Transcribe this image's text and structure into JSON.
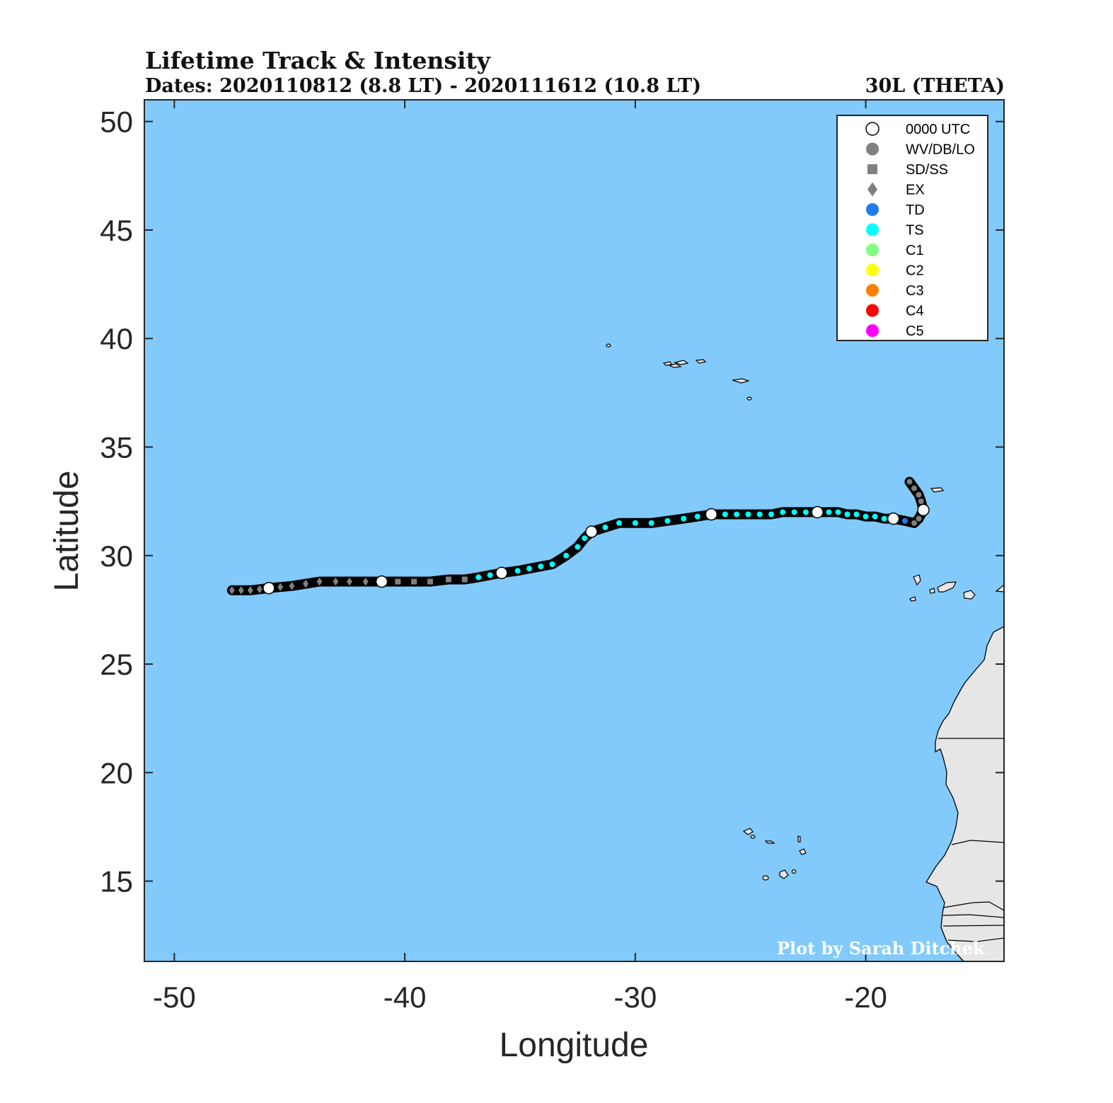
{
  "header": {
    "title": "Lifetime Track & Intensity",
    "subtitle": "Dates: 2020110812 (8.8 LT) - 2020111612 (10.8 LT)",
    "storm_id": "30L (THETA)"
  },
  "credit": "Plot by Sarah Ditchek",
  "colors": {
    "ocean": "#82cafc",
    "land": "#e6e6e6",
    "track": "#000000",
    "TD": "#1f7ce8",
    "TS": "#00ffff",
    "C1": "#80ff80",
    "C2": "#ffff00",
    "C3": "#ff8000",
    "C4": "#ff0000",
    "C5": "#ff00ff",
    "non_tropical": "#808080",
    "utc_marker": "#ffffff"
  },
  "legend": [
    {
      "label": "0000 UTC",
      "shape": "circle",
      "color": "#ffffff"
    },
    {
      "label": "WV/DB/LO",
      "shape": "circle",
      "color": "#808080"
    },
    {
      "label": "SD/SS",
      "shape": "square",
      "color": "#808080"
    },
    {
      "label": "EX",
      "shape": "diamond",
      "color": "#808080"
    },
    {
      "label": "TD",
      "shape": "circle",
      "color": "#1f7ce8"
    },
    {
      "label": "TS",
      "shape": "circle",
      "color": "#00ffff"
    },
    {
      "label": "C1",
      "shape": "circle",
      "color": "#80ff80"
    },
    {
      "label": "C2",
      "shape": "circle",
      "color": "#ffff00"
    },
    {
      "label": "C3",
      "shape": "circle",
      "color": "#ff8000"
    },
    {
      "label": "C4",
      "shape": "circle",
      "color": "#ff0000"
    },
    {
      "label": "C5",
      "shape": "circle",
      "color": "#ff00ff"
    }
  ],
  "chart_data": {
    "type": "scatter",
    "xlabel": "Longitude",
    "ylabel": "Latitude",
    "xlim": [
      -51.3,
      -14.0
    ],
    "ylim": [
      11.3,
      51.0
    ],
    "xticks": [
      -50,
      -40,
      -30,
      -20
    ],
    "yticks": [
      15,
      20,
      25,
      30,
      35,
      40,
      45,
      50
    ],
    "legend_position": "top-right",
    "track": [
      {
        "lon": -18.1,
        "lat": 33.4,
        "cat": "LO"
      },
      {
        "lon": -17.9,
        "lat": 33.1,
        "cat": "LO"
      },
      {
        "lon": -17.7,
        "lat": 32.8,
        "cat": "LO"
      },
      {
        "lon": -17.6,
        "lat": 32.5,
        "cat": "LO"
      },
      {
        "lon": -17.5,
        "lat": 32.1,
        "cat": "LO",
        "utc00": true
      },
      {
        "lon": -17.7,
        "lat": 31.7,
        "cat": "LO"
      },
      {
        "lon": -17.9,
        "lat": 31.5,
        "cat": "LO"
      },
      {
        "lon": -18.3,
        "lat": 31.6,
        "cat": "TD"
      },
      {
        "lon": -18.8,
        "lat": 31.7,
        "cat": "TS",
        "utc00": true
      },
      {
        "lon": -19.2,
        "lat": 31.7,
        "cat": "TS"
      },
      {
        "lon": -19.6,
        "lat": 31.8,
        "cat": "TS"
      },
      {
        "lon": -20.0,
        "lat": 31.8,
        "cat": "TS"
      },
      {
        "lon": -20.4,
        "lat": 31.9,
        "cat": "TS"
      },
      {
        "lon": -20.8,
        "lat": 31.9,
        "cat": "TS"
      },
      {
        "lon": -21.2,
        "lat": 32.0,
        "cat": "TS"
      },
      {
        "lon": -21.6,
        "lat": 32.0,
        "cat": "TS"
      },
      {
        "lon": -22.1,
        "lat": 32.0,
        "cat": "TS",
        "utc00": true
      },
      {
        "lon": -22.6,
        "lat": 32.0,
        "cat": "TS"
      },
      {
        "lon": -23.1,
        "lat": 32.0,
        "cat": "TS"
      },
      {
        "lon": -23.6,
        "lat": 32.0,
        "cat": "TS"
      },
      {
        "lon": -24.1,
        "lat": 31.9,
        "cat": "TS"
      },
      {
        "lon": -24.6,
        "lat": 31.9,
        "cat": "TS"
      },
      {
        "lon": -25.1,
        "lat": 31.9,
        "cat": "TS"
      },
      {
        "lon": -25.6,
        "lat": 31.9,
        "cat": "TS"
      },
      {
        "lon": -26.1,
        "lat": 31.9,
        "cat": "TS"
      },
      {
        "lon": -26.7,
        "lat": 31.9,
        "cat": "TS",
        "utc00": true
      },
      {
        "lon": -27.3,
        "lat": 31.8,
        "cat": "TS"
      },
      {
        "lon": -27.9,
        "lat": 31.7,
        "cat": "TS"
      },
      {
        "lon": -28.6,
        "lat": 31.6,
        "cat": "TS"
      },
      {
        "lon": -29.3,
        "lat": 31.5,
        "cat": "TS"
      },
      {
        "lon": -30.0,
        "lat": 31.5,
        "cat": "TS"
      },
      {
        "lon": -30.7,
        "lat": 31.5,
        "cat": "TS"
      },
      {
        "lon": -31.3,
        "lat": 31.3,
        "cat": "TS"
      },
      {
        "lon": -31.9,
        "lat": 31.1,
        "cat": "TS",
        "utc00": true
      },
      {
        "lon": -32.2,
        "lat": 30.8,
        "cat": "TS"
      },
      {
        "lon": -32.5,
        "lat": 30.4,
        "cat": "TS"
      },
      {
        "lon": -33.0,
        "lat": 30.0,
        "cat": "TS"
      },
      {
        "lon": -33.6,
        "lat": 29.6,
        "cat": "TS"
      },
      {
        "lon": -34.1,
        "lat": 29.5,
        "cat": "TS"
      },
      {
        "lon": -34.6,
        "lat": 29.4,
        "cat": "TS"
      },
      {
        "lon": -35.1,
        "lat": 29.3,
        "cat": "TS"
      },
      {
        "lon": -35.8,
        "lat": 29.2,
        "cat": "TS",
        "utc00": true
      },
      {
        "lon": -36.3,
        "lat": 29.1,
        "cat": "TS"
      },
      {
        "lon": -36.8,
        "lat": 29.0,
        "cat": "TS"
      },
      {
        "lon": -37.4,
        "lat": 28.9,
        "cat": "SS"
      },
      {
        "lon": -38.1,
        "lat": 28.9,
        "cat": "SS"
      },
      {
        "lon": -38.9,
        "lat": 28.8,
        "cat": "SS"
      },
      {
        "lon": -39.6,
        "lat": 28.8,
        "cat": "SS"
      },
      {
        "lon": -40.3,
        "lat": 28.8,
        "cat": "SS"
      },
      {
        "lon": -41.0,
        "lat": 28.8,
        "cat": "EX",
        "utc00": true
      },
      {
        "lon": -41.7,
        "lat": 28.8,
        "cat": "EX"
      },
      {
        "lon": -42.4,
        "lat": 28.8,
        "cat": "EX"
      },
      {
        "lon": -43.0,
        "lat": 28.8,
        "cat": "EX"
      },
      {
        "lon": -43.7,
        "lat": 28.8,
        "cat": "EX"
      },
      {
        "lon": -44.3,
        "lat": 28.7,
        "cat": "EX"
      },
      {
        "lon": -44.9,
        "lat": 28.6,
        "cat": "EX"
      },
      {
        "lon": -45.4,
        "lat": 28.55,
        "cat": "EX"
      },
      {
        "lon": -45.9,
        "lat": 28.5,
        "cat": "EX",
        "utc00": true
      },
      {
        "lon": -46.3,
        "lat": 28.45,
        "cat": "EX"
      },
      {
        "lon": -46.7,
        "lat": 28.4,
        "cat": "EX"
      },
      {
        "lon": -47.1,
        "lat": 28.4,
        "cat": "EX"
      },
      {
        "lon": -47.5,
        "lat": 28.4,
        "cat": "EX"
      }
    ]
  }
}
